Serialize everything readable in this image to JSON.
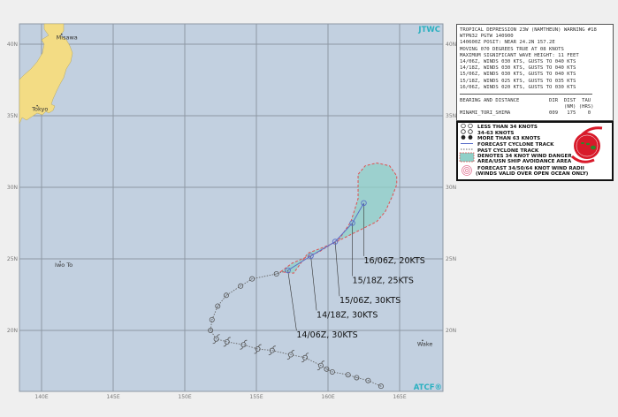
{
  "map": {
    "agency_label": "JTWC",
    "atcf_label": "ATCF®",
    "lat_labels": [
      "40N",
      "35N",
      "30N",
      "25N",
      "20N"
    ],
    "lon_labels": [
      "140E",
      "145E",
      "150E",
      "155E",
      "160E",
      "165E"
    ],
    "places": [
      {
        "name": "Misawa",
        "lon": 141.4,
        "lat": 40.7
      },
      {
        "name": "Tokyo",
        "lon": 139.7,
        "lat": 35.7
      },
      {
        "name": "Iwo To",
        "lon": 141.3,
        "lat": 24.8
      },
      {
        "name": "Wake",
        "lon": 166.6,
        "lat": 19.3
      }
    ],
    "colors": {
      "ocean": "#c2d0e0",
      "land": "#f3dc84",
      "forecast_track": "#5a6ec8",
      "danger_area": "#8fd0c8",
      "radii_outline": "#e05050",
      "label_accent": "#2ab0c0"
    },
    "past_track": [
      {
        "lon": 163.7,
        "lat": 16.1,
        "type": "lt34"
      },
      {
        "lon": 162.8,
        "lat": 16.5,
        "type": "lt34"
      },
      {
        "lon": 162.0,
        "lat": 16.7,
        "type": "lt34"
      },
      {
        "lon": 161.4,
        "lat": 16.9,
        "type": "lt34"
      },
      {
        "lon": 160.3,
        "lat": 17.1,
        "type": "lt34"
      },
      {
        "lon": 159.9,
        "lat": 17.3,
        "type": "lt34"
      },
      {
        "lon": 159.5,
        "lat": 17.55,
        "type": "34to63"
      },
      {
        "lon": 158.4,
        "lat": 18.1,
        "type": "34to63"
      },
      {
        "lon": 157.4,
        "lat": 18.3,
        "type": "34to63"
      },
      {
        "lon": 156.1,
        "lat": 18.6,
        "type": "34to63"
      },
      {
        "lon": 155.1,
        "lat": 18.7,
        "type": "34to63"
      },
      {
        "lon": 154.1,
        "lat": 19.0,
        "type": "34to63"
      },
      {
        "lon": 152.95,
        "lat": 19.2,
        "type": "34to63"
      },
      {
        "lon": 152.2,
        "lat": 19.4,
        "type": "34to63"
      },
      {
        "lon": 151.8,
        "lat": 20.0,
        "type": "lt34"
      },
      {
        "lon": 151.9,
        "lat": 20.75,
        "type": "lt34"
      },
      {
        "lon": 152.3,
        "lat": 21.7,
        "type": "lt34"
      },
      {
        "lon": 152.9,
        "lat": 22.45,
        "type": "lt34"
      },
      {
        "lon": 153.9,
        "lat": 23.1,
        "type": "lt34"
      },
      {
        "lon": 154.7,
        "lat": 23.6,
        "type": "lt34"
      },
      {
        "lon": 156.4,
        "lat": 23.95,
        "type": "lt34"
      }
    ],
    "forecast_track": [
      {
        "lon": 157.2,
        "lat": 24.2,
        "label": "14/06Z,  30KTS",
        "label_lon": 157.8,
        "label_lat": 19.5
      },
      {
        "lon": 158.8,
        "lat": 25.2,
        "label": "14/18Z,  30KTS",
        "label_lon": 159.2,
        "label_lat": 20.9
      },
      {
        "lon": 160.5,
        "lat": 26.2,
        "label": "15/06Z,  30KTS",
        "label_lon": 160.8,
        "label_lat": 21.9
      },
      {
        "lon": 161.7,
        "lat": 27.5,
        "label": "15/18Z,  25KTS",
        "label_lon": 161.7,
        "label_lat": 23.3
      },
      {
        "lon": 162.5,
        "lat": 28.9,
        "label": "16/06Z,  20KTS",
        "label_lon": 162.5,
        "label_lat": 24.7
      }
    ],
    "danger_area": [
      [
        156.7,
        24.1
      ],
      [
        157.5,
        24.7
      ],
      [
        159.4,
        25.5
      ],
      [
        160.8,
        26.4
      ],
      [
        161.6,
        27.6
      ],
      [
        162.1,
        29.2
      ],
      [
        162.1,
        30.9
      ],
      [
        162.6,
        31.5
      ],
      [
        163.4,
        31.7
      ],
      [
        164.3,
        31.5
      ],
      [
        164.8,
        30.8
      ],
      [
        164.8,
        30.2
      ],
      [
        164.5,
        29.4
      ],
      [
        164.0,
        28.3
      ],
      [
        163.4,
        27.6
      ],
      [
        162.4,
        27.1
      ],
      [
        161.4,
        26.6
      ],
      [
        160.4,
        26.1
      ],
      [
        159.4,
        25.7
      ],
      [
        158.6,
        25.4
      ],
      [
        157.6,
        24.0
      ]
    ]
  },
  "warning": {
    "lines": [
      "TROPICAL DEPRESSION 23W (NAMTHEUN) WARNING #18",
      "WTPN32 PGTW 140900",
      "140600Z POSIT: NEAR 24.2N 157.2E",
      "MOVING 070 DEGREES TRUE AT 08 KNOTS",
      "MAXIMUM SIGNIFICANT WAVE HEIGHT: 11 FEET",
      "14/06Z, WINDS 030 KTS, GUSTS TO 040 KTS",
      "14/18Z, WINDS 030 KTS, GUSTS TO 040 KTS",
      "15/06Z, WINDS 030 KTS, GUSTS TO 040 KTS",
      "15/18Z, WINDS 025 KTS, GUSTS TO 035 KTS",
      "16/06Z, WINDS 020 KTS, GUSTS TO 030 KTS"
    ],
    "bearing_header": "BEARING AND DISTANCE          DIR  DIST  TAU",
    "bearing_units": "                                   (NM) (HRS)",
    "bearing_row": "MINAMI_TORI_SHIMA             009   175    0"
  },
  "legend": {
    "items": [
      "LESS THAN 34 KNOTS",
      "34-63 KNOTS",
      "MORE THAN 63 KNOTS",
      "FORECAST CYCLONE TRACK",
      "PAST CYCLONE TRACK",
      "DENOTES 34 KNOT WIND DANGER",
      "AREA/USN SHIP AVOIDANCE AREA",
      "FORECAST 34/50/64 KNOT WIND RADII",
      "(WINDS VALID OVER OPEN OCEAN ONLY)"
    ],
    "logo_text": "JOINT TYPHOON WARNING CENTER"
  }
}
